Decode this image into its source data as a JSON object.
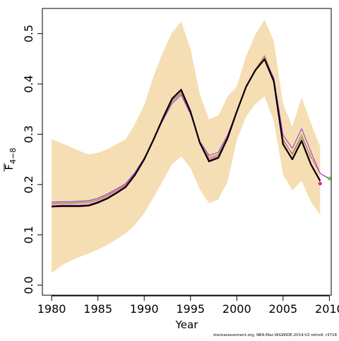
{
  "chart_data": {
    "type": "line",
    "xlabel": "Year",
    "ylabel_main": "F",
    "ylabel_subscript": "4−8",
    "footer": "stockassessment.org, NEA-Mac-WGWIDE-2014-V2-retro4, r3718",
    "xlim": [
      1979,
      2010.2
    ],
    "ylim": [
      -0.02,
      0.55
    ],
    "xticks": [
      "1980",
      "1985",
      "1990",
      "1995",
      "2000",
      "2005",
      "2010"
    ],
    "yticks": [
      "0.0",
      "0.1",
      "0.2",
      "0.3",
      "0.4",
      "0.5"
    ],
    "grid": false,
    "colors": {
      "band": "#F5DEB3",
      "main": "#000000",
      "retro_1": "#DF536B",
      "retro_2": "#61D04F",
      "retro_3": "#2297E6",
      "retro_4": "#9928E5",
      "retro_5": "#CD0BBC",
      "terminal_point_a": "#F0208F",
      "terminal_point_b": "#61D04F"
    },
    "band": {
      "x": [
        1980,
        1981,
        1982,
        1983,
        1984,
        1985,
        1986,
        1987,
        1988,
        1989,
        1990,
        1991,
        1992,
        1993,
        1994,
        1995,
        1996,
        1997,
        1998,
        1999,
        2000,
        2001,
        2002,
        2003,
        2004,
        2005,
        2006,
        2007,
        2008,
        2009
      ],
      "upper": [
        0.29,
        0.283,
        0.275,
        0.267,
        0.26,
        0.263,
        0.27,
        0.28,
        0.29,
        0.32,
        0.358,
        0.415,
        0.462,
        0.502,
        0.524,
        0.47,
        0.38,
        0.33,
        0.337,
        0.375,
        0.395,
        0.455,
        0.498,
        0.528,
        0.485,
        0.36,
        0.315,
        0.373,
        0.322,
        0.275
      ],
      "lower": [
        0.024,
        0.038,
        0.048,
        0.056,
        0.063,
        0.071,
        0.08,
        0.091,
        0.103,
        0.12,
        0.143,
        0.174,
        0.207,
        0.24,
        0.256,
        0.233,
        0.19,
        0.163,
        0.17,
        0.206,
        0.288,
        0.335,
        0.36,
        0.375,
        0.326,
        0.22,
        0.188,
        0.207,
        0.166,
        0.14
      ]
    },
    "series": [
      {
        "x": [
          1980,
          1981,
          1982,
          1983,
          1984,
          1985,
          1986,
          1987,
          1988,
          1989,
          1990,
          1991,
          1992,
          1993,
          1994,
          1995,
          1996,
          1997,
          1998,
          1999,
          2000,
          2001,
          2002,
          2003,
          2004,
          2005,
          2006,
          2007,
          2008,
          2009
        ],
        "values": [
          0.156,
          0.157,
          0.157,
          0.157,
          0.158,
          0.164,
          0.172,
          0.183,
          0.195,
          0.219,
          0.25,
          0.289,
          0.331,
          0.37,
          0.388,
          0.345,
          0.283,
          0.246,
          0.253,
          0.292,
          0.345,
          0.394,
          0.427,
          0.449,
          0.405,
          0.28,
          0.25,
          0.287,
          0.24,
          0.207
        ],
        "color": "main",
        "width": 2.2
      },
      {
        "x": [
          1980,
          1981,
          1982,
          1983,
          1984,
          1985,
          1986,
          1987,
          1988,
          1989,
          1990,
          1991,
          1992,
          1993,
          1994,
          1995,
          1996,
          1997,
          1998,
          1999,
          2000,
          2001,
          2002,
          2003,
          2004,
          2005,
          2006,
          2007,
          2008,
          2009
        ],
        "values": [
          0.158,
          0.159,
          0.159,
          0.159,
          0.16,
          0.166,
          0.174,
          0.185,
          0.197,
          0.221,
          0.252,
          0.291,
          0.333,
          0.372,
          0.39,
          0.347,
          0.285,
          0.248,
          0.255,
          0.294,
          0.347,
          0.396,
          0.429,
          0.451,
          0.407,
          0.282,
          0.252,
          0.289,
          0.242,
          0.209
        ],
        "color": "retro_5",
        "width": 1
      },
      {
        "x": [
          1980,
          1981,
          1982,
          1983,
          1984,
          1985,
          1986,
          1987,
          1988,
          1989,
          1990,
          1991,
          1992,
          1993,
          1994,
          1995,
          1996,
          1997,
          1998,
          1999,
          2000,
          2001,
          2002,
          2003,
          2004,
          2005,
          2006,
          2007,
          2008
        ],
        "values": [
          0.163,
          0.164,
          0.164,
          0.165,
          0.166,
          0.171,
          0.179,
          0.189,
          0.2,
          0.223,
          0.253,
          0.29,
          0.328,
          0.364,
          0.381,
          0.342,
          0.285,
          0.254,
          0.26,
          0.296,
          0.346,
          0.395,
          0.428,
          0.453,
          0.41,
          0.287,
          0.262,
          0.3,
          0.252
        ],
        "color": "retro_2",
        "width": 1
      },
      {
        "x": [
          1980,
          1981,
          1982,
          1983,
          1984,
          1985,
          1986,
          1987,
          1988,
          1989,
          1990,
          1991,
          1992,
          1993,
          1994,
          1995,
          1996,
          1997,
          1998,
          1999,
          2000,
          2001,
          2002,
          2003,
          2004,
          2005,
          2006,
          2007,
          2008,
          2009,
          2010
        ],
        "values": [
          0.161,
          0.162,
          0.162,
          0.163,
          0.164,
          0.169,
          0.177,
          0.188,
          0.199,
          0.222,
          0.252,
          0.29,
          0.33,
          0.366,
          0.383,
          0.343,
          0.285,
          0.251,
          0.258,
          0.295,
          0.346,
          0.395,
          0.429,
          0.456,
          0.41,
          0.29,
          0.26,
          0.295,
          0.255,
          0.222,
          0.211
        ],
        "color": "retro_1",
        "width": 1
      },
      {
        "x": [
          1980,
          1981,
          1982,
          1983,
          1984,
          1985,
          1986,
          1987,
          1988,
          1989,
          1990,
          1991,
          1992,
          1993,
          1994,
          1995,
          1996,
          1997,
          1998,
          1999,
          2000,
          2001,
          2002,
          2003,
          2004,
          2005,
          2006,
          2007,
          2008,
          2009,
          2010
        ],
        "values": [
          0.165,
          0.166,
          0.166,
          0.167,
          0.168,
          0.173,
          0.181,
          0.191,
          0.202,
          0.224,
          0.253,
          0.289,
          0.327,
          0.361,
          0.378,
          0.34,
          0.286,
          0.258,
          0.264,
          0.298,
          0.347,
          0.394,
          0.427,
          0.45,
          0.412,
          0.298,
          0.272,
          0.311,
          0.265,
          0.222,
          0.212
        ],
        "color": "retro_4",
        "width": 1
      }
    ],
    "points": [
      {
        "x": 2009,
        "y": 0.202,
        "color": "terminal_point_a"
      },
      {
        "x": 2010,
        "y": 0.212,
        "color": "terminal_point_b"
      }
    ]
  }
}
